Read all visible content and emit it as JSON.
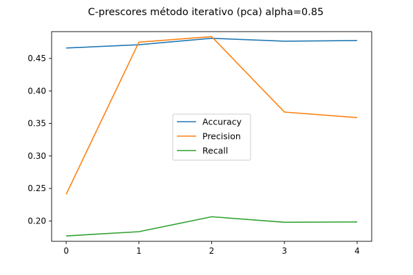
{
  "chart_data": {
    "type": "line",
    "title": "C-prescores método iterativo (pca) alpha=0.85",
    "xlabel": "",
    "ylabel": "",
    "x": [
      0,
      1,
      2,
      3,
      4
    ],
    "xticks": [
      "0",
      "1",
      "2",
      "3",
      "4"
    ],
    "xlim": [
      -0.2,
      4.2
    ],
    "ylim": [
      0.1687,
      0.4912
    ],
    "yticks": [
      0.2,
      0.25,
      0.3,
      0.35,
      0.4,
      0.45
    ],
    "ytick_labels": [
      "0.20",
      "0.25",
      "0.30",
      "0.35",
      "0.40",
      "0.45"
    ],
    "grid": false,
    "legend_position": "center-right",
    "series": [
      {
        "name": "Accuracy",
        "color": "#1f77b4",
        "values": [
          0.466,
          0.471,
          0.481,
          0.4765,
          0.4775
        ]
      },
      {
        "name": "Precision",
        "color": "#ff7f0e",
        "values": [
          0.241,
          0.475,
          0.4835,
          0.3675,
          0.359
        ]
      },
      {
        "name": "Recall",
        "color": "#2ca02c",
        "values": [
          0.177,
          0.1835,
          0.2065,
          0.198,
          0.1985
        ]
      }
    ]
  }
}
